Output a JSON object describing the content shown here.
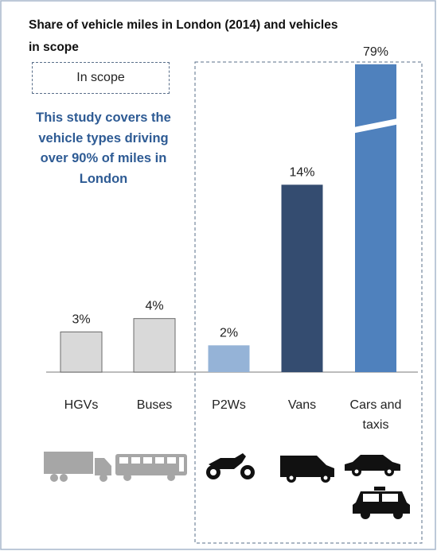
{
  "chart_data": {
    "type": "bar",
    "title": "Share of vehicle miles in London (2014) and vehicles in scope",
    "legend_label": "In scope",
    "annotation": "This study covers the vehicle types driving over 90% of miles in London",
    "categories": [
      "HGVs",
      "Buses",
      "P2Ws",
      "Vans",
      "Cars and taxis"
    ],
    "values": [
      3,
      4,
      2,
      14,
      79
    ],
    "value_labels": [
      "3%",
      "4%",
      "2%",
      "14%",
      "79%"
    ],
    "colors": [
      "#d9d9d9",
      "#d9d9d9",
      "#95b3d7",
      "#344c70",
      "#4f81bd"
    ],
    "ylim": [
      0,
      24
    ],
    "ybreak": [
      18,
      74
    ]
  }
}
